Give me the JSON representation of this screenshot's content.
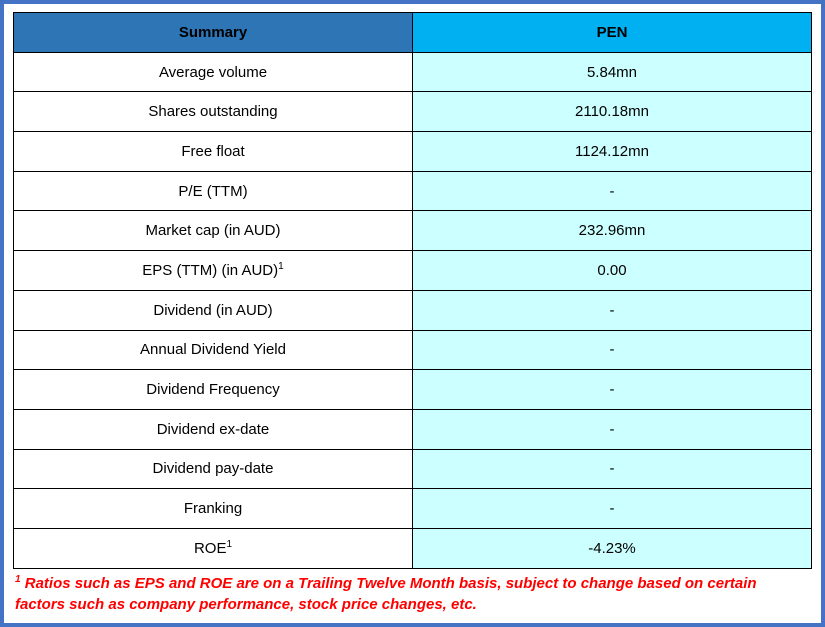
{
  "table": {
    "header": {
      "left": "Summary",
      "right": "PEN"
    },
    "rows": [
      {
        "label": "Average volume",
        "sup": "",
        "value": "5.84mn"
      },
      {
        "label": "Shares outstanding",
        "sup": "",
        "value": "2110.18mn"
      },
      {
        "label": "Free float",
        "sup": "",
        "value": "1124.12mn"
      },
      {
        "label": "P/E (TTM)",
        "sup": "",
        "value": "-"
      },
      {
        "label": "Market cap (in AUD)",
        "sup": "",
        "value": "232.96mn"
      },
      {
        "label": "EPS (TTM) (in AUD)",
        "sup": "1",
        "value": "0.00"
      },
      {
        "label": "Dividend (in AUD)",
        "sup": "",
        "value": "-"
      },
      {
        "label": "Annual Dividend Yield",
        "sup": "",
        "value": "-"
      },
      {
        "label": "Dividend Frequency",
        "sup": "",
        "value": "-"
      },
      {
        "label": "Dividend ex-date",
        "sup": "",
        "value": "-"
      },
      {
        "label": "Dividend pay-date",
        "sup": "",
        "value": "-"
      },
      {
        "label": "Franking",
        "sup": "",
        "value": "-"
      },
      {
        "label": "ROE",
        "sup": "1",
        "value": "-4.23%"
      }
    ],
    "footnote": {
      "sup": "1",
      "text": " Ratios such as EPS and ROE are on a Trailing Twelve Month basis, subject to change based on certain factors such as company performance, stock price changes, etc."
    },
    "colors": {
      "header_left_bg": "#2E75B6",
      "header_right_bg": "#00B0F0",
      "value_bg": "#CCFFFF",
      "footnote_color": "#FF0000",
      "outer_border": "#4472C4"
    }
  },
  "chart_data": {
    "type": "table",
    "title": "Summary",
    "columns": [
      "Summary",
      "PEN"
    ],
    "rows": [
      [
        "Average volume",
        "5.84mn"
      ],
      [
        "Shares outstanding",
        "2110.18mn"
      ],
      [
        "Free float",
        "1124.12mn"
      ],
      [
        "P/E (TTM)",
        "-"
      ],
      [
        "Market cap (in AUD)",
        "232.96mn"
      ],
      [
        "EPS (TTM) (in AUD)1",
        "0.00"
      ],
      [
        "Dividend (in AUD)",
        "-"
      ],
      [
        "Annual Dividend Yield",
        "-"
      ],
      [
        "Dividend Frequency",
        "-"
      ],
      [
        "Dividend ex-date",
        "-"
      ],
      [
        "Dividend pay-date",
        "-"
      ],
      [
        "Franking",
        "-"
      ],
      [
        "ROE1",
        "-4.23%"
      ]
    ],
    "footnote": "1 Ratios such as EPS and ROE are on a Trailing Twelve Month basis, subject to change based on certain factors such as company performance, stock price changes, etc."
  }
}
